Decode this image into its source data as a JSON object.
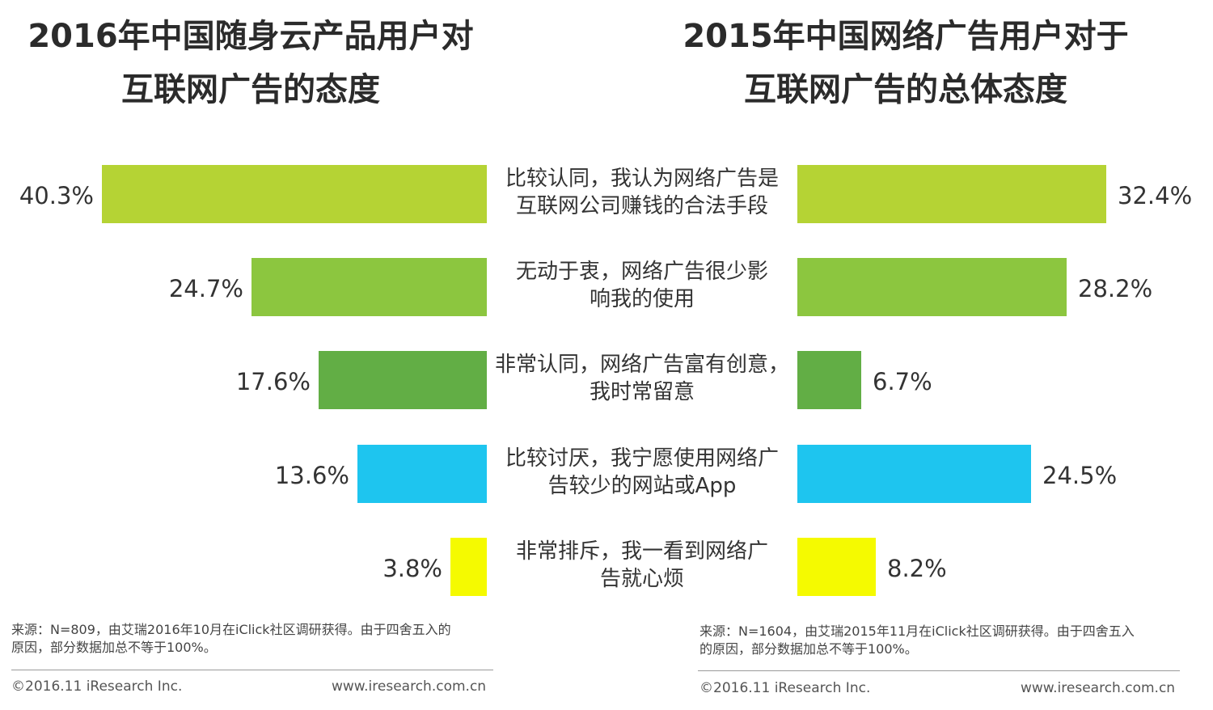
{
  "chart_data": [
    {
      "type": "bar",
      "orientation": "horizontal",
      "title_lines": [
        "2016年中国随身云产品用户对",
        "互联网广告的态度"
      ],
      "categories": [
        [
          "比较认同，我认为网络广告是",
          "互联网公司赚钱的合法手段"
        ],
        [
          "无动于衷，网络广告很少影",
          "响我的使用"
        ],
        [
          "非常认同，网络广告富有创意，",
          "我时常留意"
        ],
        [
          "比较讨厌，我宁愿使用网络广",
          "告较少的网站或App"
        ],
        [
          "非常排斥，我一看到网络广",
          "告就心烦"
        ]
      ],
      "values": [
        40.3,
        24.7,
        17.6,
        13.6,
        3.8
      ],
      "value_labels": [
        "40.3%",
        "24.7%",
        "17.6%",
        "13.6%",
        "3.8%"
      ],
      "colors": [
        "#b5d334",
        "#8cc63f",
        "#62ae45",
        "#1ec5ef",
        "#f5fa00"
      ],
      "unit": "%",
      "direction": "leftward",
      "source_lines": [
        "来源：N=809，由艾瑞2016年10月在iClick社区调研获得。由于四舍五入的",
        "原因，部分数据加总不等于100%。"
      ],
      "copyright": "©2016.11 iResearch Inc.",
      "url": "www.iresearch.com.cn"
    },
    {
      "type": "bar",
      "orientation": "horizontal",
      "title_lines": [
        "2015年中国网络广告用户对于",
        "互联网广告的总体态度"
      ],
      "categories": [
        [
          "比较认同，我认为网络广告是",
          "互联网公司赚钱的合法手段"
        ],
        [
          "无动于衷，网络广告很少影",
          "响我的使用"
        ],
        [
          "非常认同，网络广告富有创意，",
          "我时常留意"
        ],
        [
          "比较讨厌，我宁愿使用网络广",
          "告较少的网站或App"
        ],
        [
          "非常排斥，我一看到网络广",
          "告就心烦"
        ]
      ],
      "values": [
        32.4,
        28.2,
        6.7,
        24.5,
        8.2
      ],
      "value_labels": [
        "32.4%",
        "28.2%",
        "6.7%",
        "24.5%",
        "8.2%"
      ],
      "colors": [
        "#b5d334",
        "#8cc63f",
        "#62ae45",
        "#1ec5ef",
        "#f5fa00"
      ],
      "unit": "%",
      "direction": "rightward",
      "source_lines": [
        "来源：N=1604，由艾瑞2015年11月在iClick社区调研获得。由于四舍五入",
        "的原因，部分数据加总不等于100%。"
      ],
      "copyright": "©2016.11 iResearch Inc.",
      "url": "www.iresearch.com.cn"
    }
  ]
}
